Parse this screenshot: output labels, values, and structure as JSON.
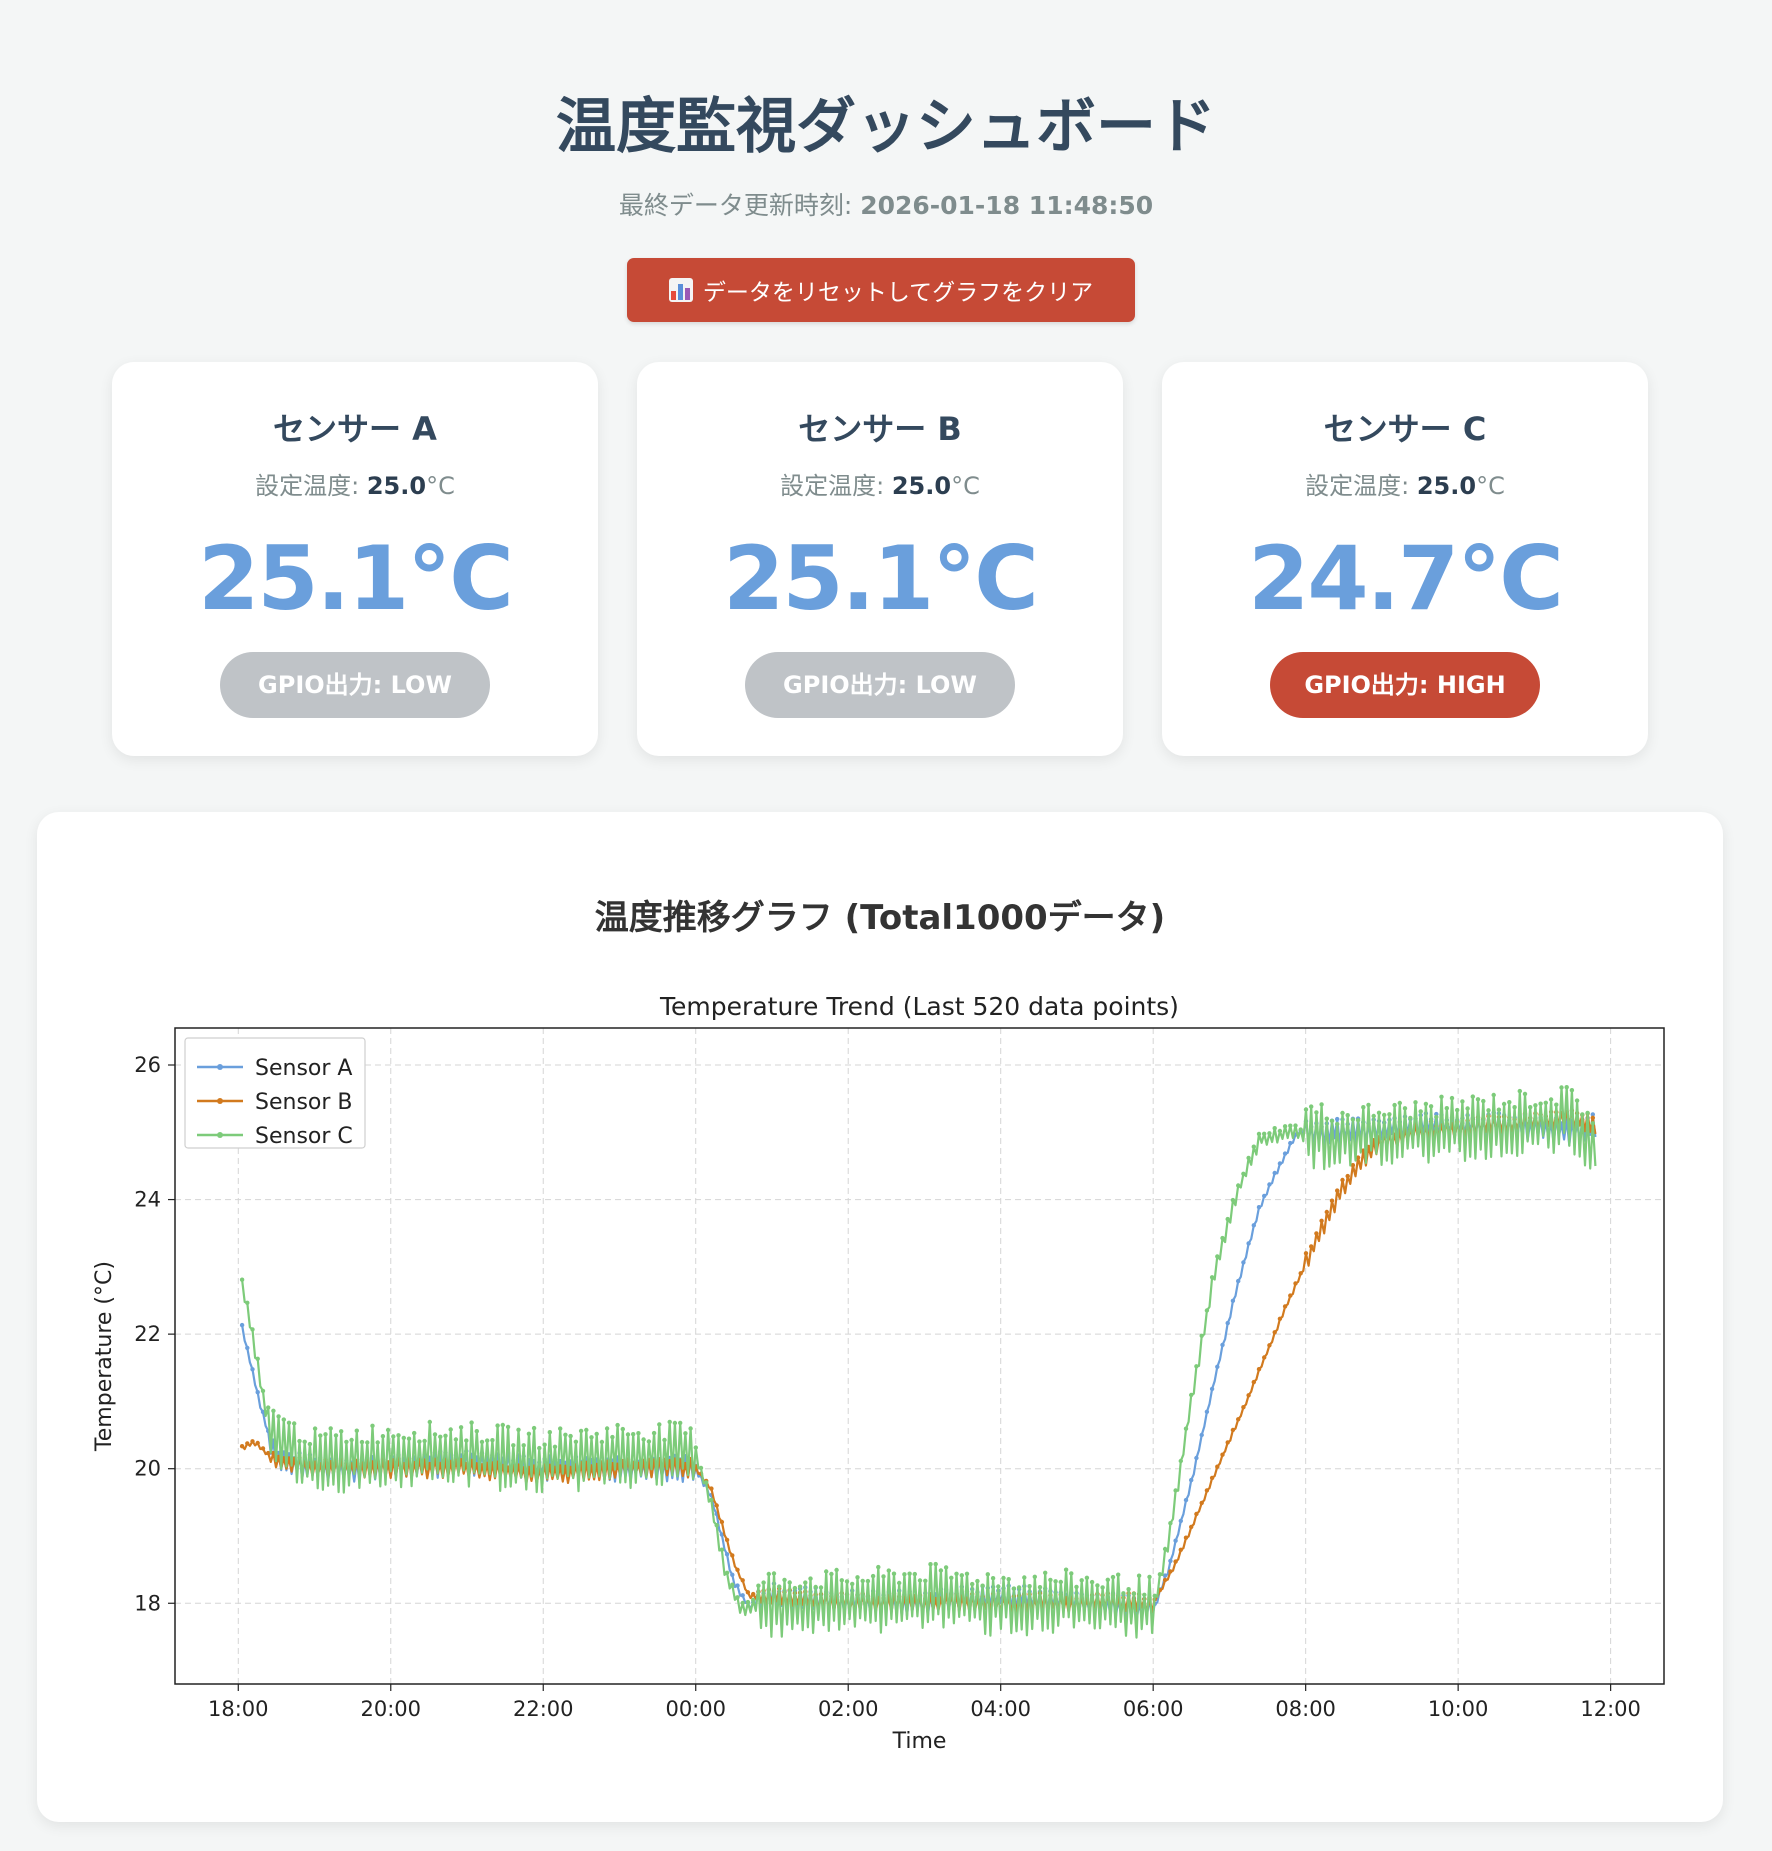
{
  "header": {
    "title": "温度監視ダッシュボード",
    "updated_label": "最終データ更新時刻: ",
    "updated_value": "2026-01-18 11:48:50"
  },
  "reset_button": {
    "label": "データをリセットしてグラフをクリア",
    "icon": "bar-chart-icon"
  },
  "cards": [
    {
      "title": "センサー A",
      "set_label": "設定温度: ",
      "set_value": "25.0",
      "set_unit": "°C",
      "temperature": "25.1°C",
      "gpio": "GPIO出力: LOW",
      "gpio_state": "low"
    },
    {
      "title": "センサー B",
      "set_label": "設定温度: ",
      "set_value": "25.0",
      "set_unit": "°C",
      "temperature": "25.1°C",
      "gpio": "GPIO出力: LOW",
      "gpio_state": "low"
    },
    {
      "title": "センサー C",
      "set_label": "設定温度: ",
      "set_value": "25.0",
      "set_unit": "°C",
      "temperature": "24.7°C",
      "gpio": "GPIO出力: HIGH",
      "gpio_state": "high"
    }
  ],
  "colors": {
    "accent_red": "#c64a36",
    "temp_blue": "#6a9fdc",
    "gpio_low": "#bfc3c7",
    "sensor_a": "#6a9fdc",
    "sensor_b": "#d27a1e",
    "sensor_c": "#7dcb7a"
  },
  "chart_panel": {
    "heading": "温度推移グラフ (Total1000データ)"
  },
  "chart_data": {
    "type": "line",
    "title": "Temperature Trend (Last 520 data points)",
    "xlabel": "Time",
    "ylabel": "Temperature (°C)",
    "x_tick_labels": [
      "18:00",
      "20:00",
      "22:00",
      "00:00",
      "02:00",
      "04:00",
      "06:00",
      "08:00",
      "10:00",
      "12:00"
    ],
    "y_ticks": [
      18,
      20,
      22,
      24,
      26
    ],
    "xlim_hours": [
      -0.83,
      18.7
    ],
    "ylim": [
      16.8,
      26.55
    ],
    "x_start": "18:00",
    "grid": true,
    "legend_position": "top-left",
    "series": [
      {
        "name": "Sensor A",
        "color": "#6a9fdc",
        "points": [
          [
            0.05,
            22.1
          ],
          [
            0.3,
            20.9
          ],
          [
            0.5,
            20.1
          ],
          [
            1.0,
            20.0
          ],
          [
            2.0,
            20.0
          ],
          [
            3.0,
            20.1
          ],
          [
            4.0,
            20.0
          ],
          [
            5.0,
            20.0
          ],
          [
            6.0,
            20.0
          ],
          [
            6.2,
            19.6
          ],
          [
            6.5,
            18.3
          ],
          [
            6.7,
            17.95
          ],
          [
            7.0,
            18.1
          ],
          [
            8.0,
            18.0
          ],
          [
            9.0,
            18.0
          ],
          [
            10.0,
            18.1
          ],
          [
            11.0,
            18.0
          ],
          [
            12.0,
            17.9
          ],
          [
            12.2,
            18.5
          ],
          [
            12.5,
            19.8
          ],
          [
            12.8,
            21.3
          ],
          [
            13.1,
            22.7
          ],
          [
            13.4,
            23.9
          ],
          [
            13.7,
            24.6
          ],
          [
            13.9,
            25.0
          ],
          [
            14.5,
            25.0
          ],
          [
            15.5,
            25.1
          ],
          [
            16.5,
            25.1
          ],
          [
            17.5,
            25.0
          ],
          [
            17.8,
            25.1
          ]
        ],
        "noise": 0.2
      },
      {
        "name": "Sensor B",
        "color": "#d27a1e",
        "points": [
          [
            0.05,
            20.3
          ],
          [
            0.2,
            20.4
          ],
          [
            0.5,
            20.1
          ],
          [
            1.0,
            20.0
          ],
          [
            2.0,
            20.0
          ],
          [
            3.0,
            20.0
          ],
          [
            4.0,
            19.9
          ],
          [
            5.0,
            20.0
          ],
          [
            6.0,
            20.0
          ],
          [
            6.2,
            19.7
          ],
          [
            6.5,
            18.6
          ],
          [
            6.7,
            18.1
          ],
          [
            7.0,
            18.1
          ],
          [
            8.0,
            18.0
          ],
          [
            9.0,
            18.0
          ],
          [
            10.0,
            18.0
          ],
          [
            11.0,
            18.0
          ],
          [
            12.0,
            18.0
          ],
          [
            12.3,
            18.6
          ],
          [
            12.8,
            19.9
          ],
          [
            13.3,
            21.2
          ],
          [
            13.7,
            22.3
          ],
          [
            14.1,
            23.3
          ],
          [
            14.5,
            24.2
          ],
          [
            14.9,
            24.8
          ],
          [
            15.5,
            25.0
          ],
          [
            16.5,
            25.1
          ],
          [
            17.5,
            25.2
          ],
          [
            17.8,
            25.1
          ]
        ],
        "noise": 0.15
      },
      {
        "name": "Sensor C",
        "color": "#7dcb7a",
        "points": [
          [
            0.05,
            22.7
          ],
          [
            0.15,
            22.2
          ],
          [
            0.35,
            20.9
          ],
          [
            0.6,
            20.3
          ],
          [
            1.0,
            20.1
          ],
          [
            2.0,
            20.2
          ],
          [
            3.0,
            20.2
          ],
          [
            4.0,
            20.1
          ],
          [
            5.0,
            20.2
          ],
          [
            6.0,
            20.2
          ],
          [
            6.2,
            19.5
          ],
          [
            6.4,
            18.4
          ],
          [
            6.6,
            17.9
          ],
          [
            7.0,
            18.0
          ],
          [
            8.0,
            18.0
          ],
          [
            9.0,
            18.1
          ],
          [
            10.0,
            18.0
          ],
          [
            11.0,
            18.0
          ],
          [
            12.0,
            17.9
          ],
          [
            12.2,
            18.9
          ],
          [
            12.5,
            21.0
          ],
          [
            12.8,
            22.9
          ],
          [
            13.1,
            24.1
          ],
          [
            13.4,
            24.9
          ],
          [
            13.8,
            25.0
          ],
          [
            14.5,
            24.9
          ],
          [
            15.5,
            25.0
          ],
          [
            16.5,
            25.1
          ],
          [
            17.5,
            25.2
          ],
          [
            17.8,
            24.8
          ]
        ],
        "noise": 0.5
      }
    ]
  }
}
